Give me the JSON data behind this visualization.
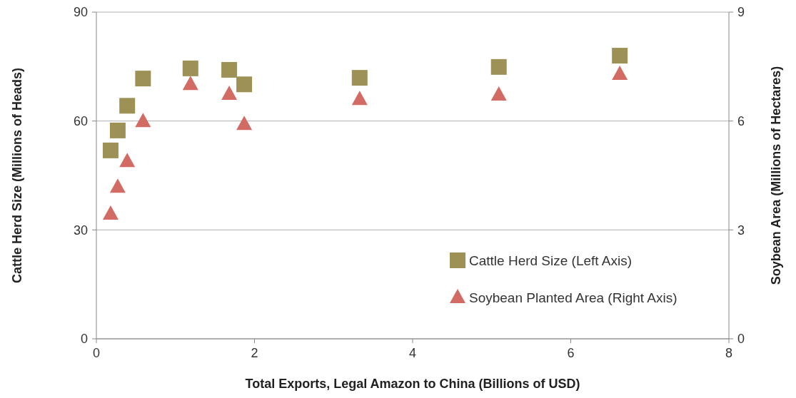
{
  "chart_data": {
    "type": "scatter",
    "xlabel": "Total Exports, Legal Amazon to China (Billions of USD)",
    "ylabel": "Cattle Herd Size (Millions of Heads)",
    "y2label": "Soybean Area (Millions of Hectares)",
    "xlim": [
      0,
      8
    ],
    "xticks": [
      0,
      2,
      4,
      6,
      8
    ],
    "ylim": [
      0,
      90
    ],
    "yticks": [
      0,
      30,
      60,
      90
    ],
    "y2lim": [
      0,
      9
    ],
    "y2ticks": [
      0,
      3,
      6,
      9
    ],
    "grid": "y",
    "legend": "bottom right",
    "series": [
      {
        "name": "Cattle Herd Size (Left Axis)",
        "color": "#9e9155",
        "marker": "square",
        "x": [
          0.18,
          0.27,
          0.39,
          0.59,
          1.19,
          1.68,
          1.87,
          3.33,
          5.09,
          6.62
        ],
        "values": [
          51.9,
          57.4,
          64.2,
          71.7,
          74.5,
          74.1,
          70.1,
          71.9,
          74.9,
          78.0
        ]
      },
      {
        "name": "Soybean Planted Area (Right Axis)",
        "color": "#d16b63",
        "marker": "triangle",
        "axis": "y2",
        "x": [
          0.18,
          0.27,
          0.39,
          0.59,
          1.19,
          1.68,
          1.87,
          3.33,
          5.09,
          6.62
        ],
        "values": [
          3.44,
          4.18,
          4.89,
          5.99,
          7.01,
          6.74,
          5.91,
          6.6,
          6.72,
          7.29
        ]
      }
    ]
  }
}
